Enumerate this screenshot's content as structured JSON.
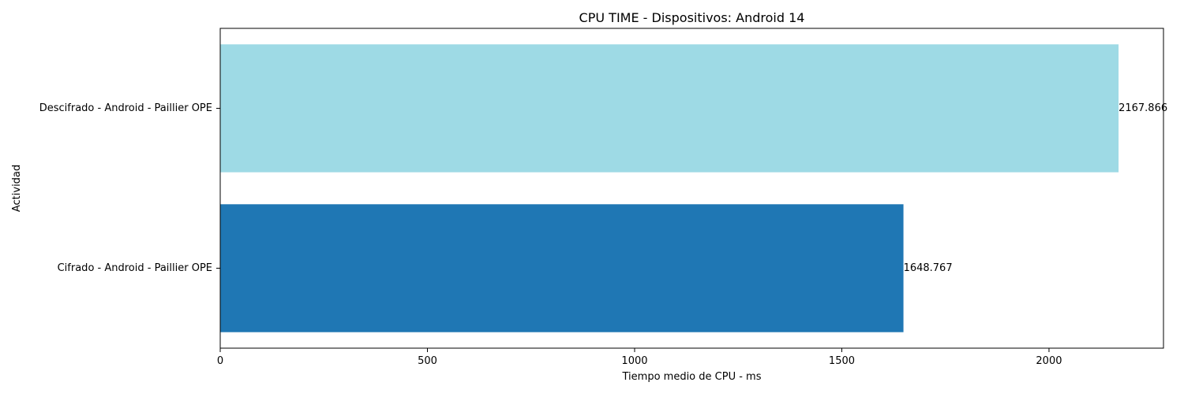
{
  "chart_data": {
    "type": "bar",
    "orientation": "horizontal",
    "title": "CPU TIME - Dispositivos: Android 14",
    "xlabel": "Tiempo medio de CPU - ms",
    "ylabel": "Actividad",
    "xlim": [
      0,
      2276.26
    ],
    "xticks": [
      0,
      500,
      1000,
      1500,
      2000
    ],
    "xtick_labels": [
      "0",
      "500",
      "1000",
      "1500",
      "2000"
    ],
    "categories": [
      "Cifrado - Android - Paillier OPE",
      "Descifrado - Android - Paillier OPE"
    ],
    "values": [
      1648.767,
      2167.866
    ],
    "value_labels": [
      "1648.767",
      "2167.866"
    ],
    "colors": [
      "#1f77b4",
      "#9edae5"
    ],
    "grid": false,
    "legend": "none"
  }
}
